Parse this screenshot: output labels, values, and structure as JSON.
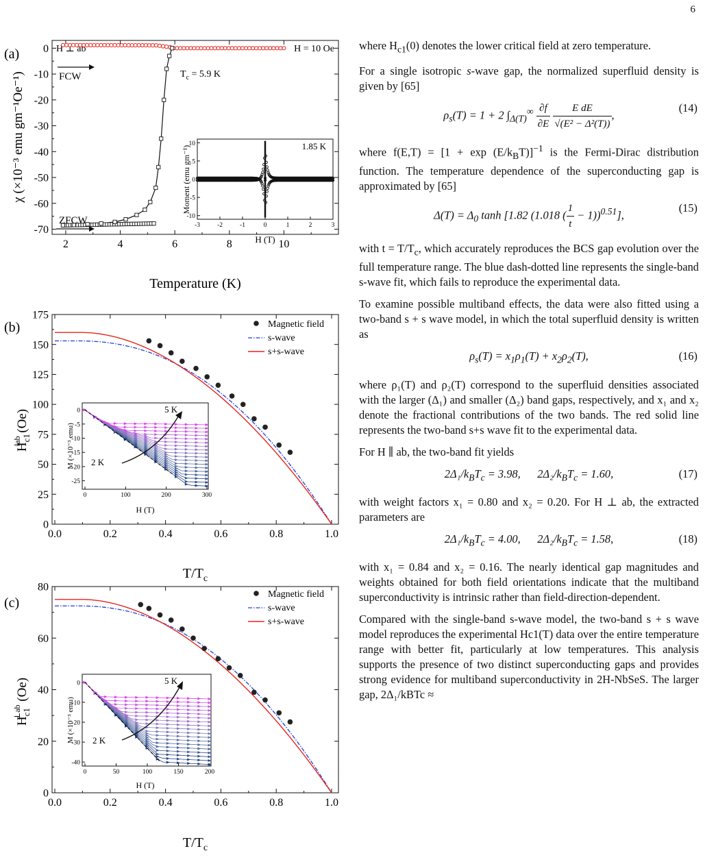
{
  "page_number": "6",
  "figures": {
    "a": {
      "panel": "(a)",
      "tl": "H ⊥ ab",
      "tr": "H = 10 Oe",
      "fcw": "FCW",
      "zfcw": "ZFCW",
      "tc": "T",
      "tc_sub": "c",
      "tc_val": " = 5.9 K",
      "xlabel": "Temperature (K)",
      "ylabel": "χ (×10⁻³ emu gm⁻¹Oe⁻¹)",
      "yticks": [
        "0",
        "-10",
        "-20",
        "-30",
        "-40",
        "-50",
        "-60",
        "-70"
      ],
      "xticks": [
        "2",
        "4",
        "6",
        "8",
        "10"
      ],
      "inset": {
        "tag": "1.85 K",
        "xlabel": "H (T)",
        "ylabel": "Moment (emu gm⁻¹)",
        "xticks": [
          "-3",
          "-2",
          "-1",
          "0",
          "1",
          "2",
          "3"
        ],
        "yticks": [
          "10",
          "5",
          "0",
          "-5",
          "-10"
        ]
      }
    },
    "b": {
      "panel": "(b)",
      "legend": [
        "Magnetic field",
        "s-wave",
        "s+s-wave"
      ],
      "xlabel": "T/T",
      "xlabel_sub": "c",
      "ylabel": "H",
      "ylabel_sub": "c1",
      "ylabel_sup": "ǁab",
      "ylabel_tail": " (Oe)",
      "yticks": [
        "0",
        "25",
        "50",
        "75",
        "100",
        "125",
        "150",
        "175"
      ],
      "xticks": [
        "0.0",
        "0.2",
        "0.4",
        "0.6",
        "0.8",
        "1.0"
      ],
      "inset": {
        "hi": "5 K",
        "lo": "2 K",
        "xlabel": "H (T)",
        "ylabel": "M (×10⁻³ emu)",
        "xticks": [
          "0",
          "100",
          "200",
          "300"
        ],
        "yticks": [
          "0",
          "-5",
          "-10",
          "-15",
          "-20",
          "-25"
        ]
      }
    },
    "c": {
      "panel": "(c)",
      "legend": [
        "Magnetic field",
        "s-wave",
        "s+s-wave"
      ],
      "xlabel": "T/T",
      "xlabel_sub": "c",
      "ylabel": "H",
      "ylabel_sub": "c1",
      "ylabel_sup": "⊥ab",
      "ylabel_tail": " (Oe)",
      "yticks": [
        "0",
        "20",
        "40",
        "60",
        "80"
      ],
      "xticks": [
        "0.0",
        "0.2",
        "0.4",
        "0.6",
        "0.8",
        "1.0"
      ],
      "inset": {
        "hi": "5 K",
        "lo": "2 K",
        "xlabel": "H (T)",
        "ylabel": "M (×10⁻³ emu)",
        "xticks": [
          "0",
          "50",
          "100",
          "150",
          "200"
        ],
        "yticks": [
          "0",
          "-10",
          "-20",
          "-30",
          "-40"
        ]
      }
    }
  },
  "chart_data": [
    {
      "type": "scatter",
      "panel": "a",
      "xlabel": "Temperature (K)",
      "ylabel": "χ (×10⁻³ emu gm⁻¹Oe⁻¹)",
      "xlim": [
        1.5,
        12
      ],
      "ylim": [
        -72,
        3
      ],
      "series": [
        {
          "name": "FCW",
          "x": [
            1.9,
            2.5,
            3,
            3.5,
            4,
            4.5,
            5,
            5.5,
            5.9,
            6.5,
            7,
            8,
            9,
            10
          ],
          "y": [
            1.2,
            1.2,
            1.1,
            1.1,
            1.0,
            0.9,
            0.8,
            0.4,
            0.1,
            0,
            0,
            0,
            0,
            0
          ]
        },
        {
          "name": "ZFCW",
          "x": [
            1.9,
            2.3,
            2.8,
            3.3,
            3.8,
            4.2,
            4.6,
            4.9,
            5.1,
            5.3,
            5.4,
            5.5,
            5.6,
            5.7,
            5.8,
            5.9
          ],
          "y": [
            -68.5,
            -68.4,
            -68.1,
            -67.8,
            -67.2,
            -66.2,
            -64.5,
            -62.5,
            -59.5,
            -54,
            -46,
            -35,
            -20,
            -8,
            -3,
            0
          ]
        }
      ],
      "annotation": "Tc = 5.9 K"
    },
    {
      "type": "scatter",
      "panel": "b",
      "xlabel": "T/Tc",
      "ylabel": "Hc1∥ab (Oe)",
      "xlim": [
        0,
        1.0
      ],
      "ylim": [
        0,
        175
      ],
      "series": [
        {
          "name": "Magnetic field",
          "x": [
            0.34,
            0.38,
            0.42,
            0.46,
            0.51,
            0.55,
            0.59,
            0.64,
            0.68,
            0.72,
            0.76,
            0.81,
            0.85
          ],
          "y": [
            153,
            149,
            143,
            136,
            130,
            123,
            116,
            107,
            100,
            88,
            81,
            66,
            60
          ]
        }
      ],
      "fits": [
        "s-wave",
        "s+s-wave"
      ]
    },
    {
      "type": "scatter",
      "panel": "c",
      "xlabel": "T/Tc",
      "ylabel": "Hc1⊥ab (Oe)",
      "xlim": [
        0,
        1.0
      ],
      "ylim": [
        0,
        80
      ],
      "series": [
        {
          "name": "Magnetic field",
          "x": [
            0.31,
            0.34,
            0.38,
            0.42,
            0.46,
            0.5,
            0.54,
            0.59,
            0.63,
            0.67,
            0.72,
            0.76,
            0.81,
            0.85
          ],
          "y": [
            73,
            71.5,
            69,
            67,
            63.5,
            60,
            56,
            52,
            48.5,
            45.5,
            39,
            36,
            31,
            27.5
          ]
        }
      ],
      "fits": [
        "s-wave",
        "s+s-wave"
      ]
    }
  ],
  "text": {
    "p0": "where H",
    "p0_sub": "c1",
    "p0_b": "(0) denotes the lower critical field at zero temperature.",
    "p1a": "For a single isotropic ",
    "p1s": "s",
    "p1b": "-wave gap, the normalized superfluid density is given by [65]",
    "eq14_num": "(14)",
    "p2": "where f(E,T) = [1 + exp (E/k",
    "p2_b": "T)]",
    "p2_c": " is the Fermi-Dirac distribution function. The temperature dependence of the superconducting gap is approximated by [65]",
    "eq15_num": "(15)",
    "p3": "with t = T/T",
    "p3_b": ", which accurately reproduces the BCS gap evolution over the full temperature range. The blue dash-dotted line represents the single-band s-wave fit, which fails to reproduce the experimental data.",
    "p4": "To examine possible multiband effects, the data were also fitted using a two-band s + s wave model, in which the total superfluid density is written as",
    "eq16_num": "(16)",
    "p5": "where ρ₁(T) and ρ₂(T) correspond to the superfluid densities associated with the larger (Δ₁) and smaller (Δ₂) band gaps, respectively, and x₁ and x₂ denote the fractional contributions of the two bands. The red solid line represents the two-band s+s wave fit to the experimental data.",
    "p6": "For H ∥ ab, the two-band fit yields",
    "eq17_a": "2Δ₁/k",
    "eq17_b": "T",
    "eq17_c": " = 3.98,",
    "eq17_d": "2Δ₂/k",
    "eq17_e": "T",
    "eq17_f": " = 1.60,",
    "eq17_num": "(17)",
    "p7": "with weight factors x₁ = 0.80 and x₂ = 0.20. For H ⊥ ab, the extracted parameters are",
    "eq18_c": " = 4.00,",
    "eq18_f": " = 1.58,",
    "eq18_num": "(18)",
    "p8": "with x₁ = 0.84 and x₂ = 0.16. The nearly identical gap magnitudes and weights obtained for both field orientations indicate that the multiband superconductivity is intrinsic rather than field-direction-dependent.",
    "p9": "Compared with the single-band s-wave model, the two-band s + s wave model reproduces the experimental Hc1(T) data over the entire temperature range with better fit, particularly at low temperatures. This analysis supports the presence of two distinct superconducting gaps and provides strong evidence for multiband superconductivity in 2H-NbSeS. The larger gap, 2Δ₁/kBTc ≈"
  }
}
